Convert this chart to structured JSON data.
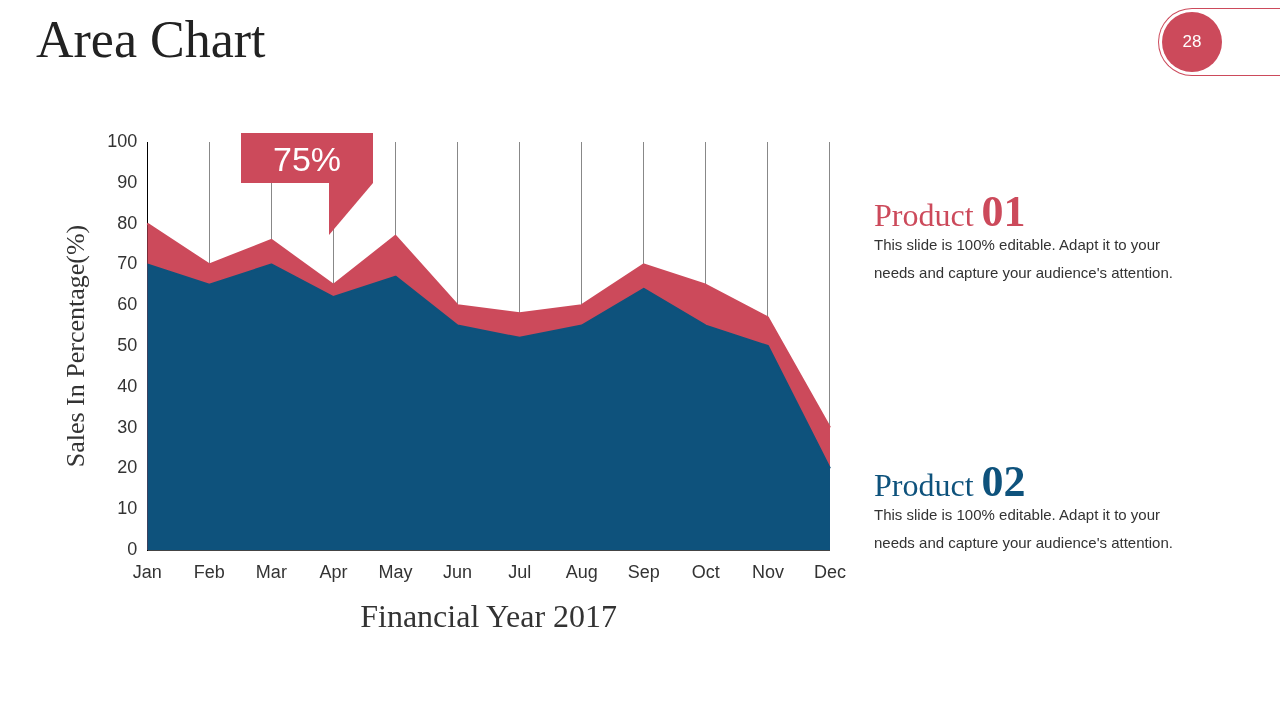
{
  "chart_data": {
    "type": "area",
    "title": "Area Chart",
    "xlabel": "Financial Year 2017",
    "ylabel": "Sales In Percentage(%)",
    "categories": [
      "Jan",
      "Feb",
      "Mar",
      "Apr",
      "May",
      "Jun",
      "Jul",
      "Aug",
      "Sep",
      "Oct",
      "Nov",
      "Dec"
    ],
    "series": [
      {
        "name": "Product 01",
        "color": "#cc4a5b",
        "values": [
          80,
          70,
          76,
          65,
          77,
          60,
          58,
          60,
          70,
          65,
          57,
          30
        ]
      },
      {
        "name": "Product 02",
        "color": "#0e527c",
        "values": [
          70,
          65,
          70,
          62,
          67,
          55,
          52,
          55,
          64,
          55,
          50,
          20
        ]
      }
    ],
    "ylim": [
      0,
      100
    ],
    "yticks": [
      0,
      10,
      20,
      30,
      40,
      50,
      60,
      70,
      80,
      90,
      100
    ],
    "grid": "x",
    "legend": "right",
    "annotations": [
      "28",
      "This slide is 100% editable. Adapt it to your needs and capture your audience's attention.",
      "This slide is 100% editable. Adapt it to your needs and capture your audience's attention.",
      "75%"
    ]
  }
}
